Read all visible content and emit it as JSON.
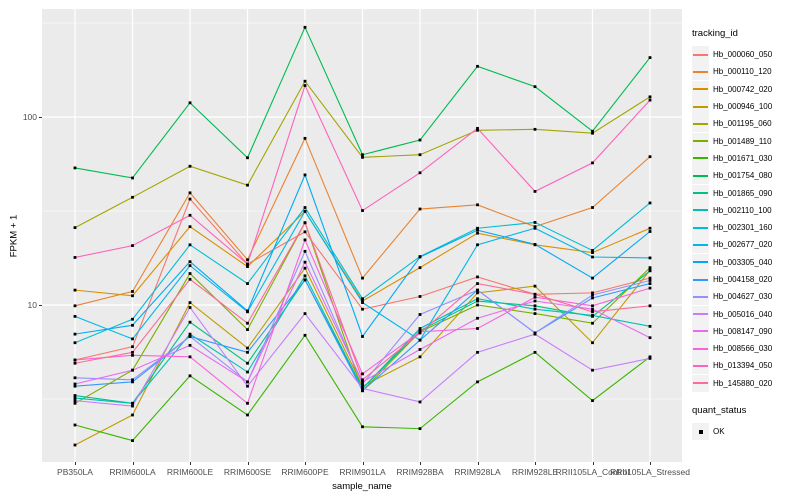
{
  "axes": {
    "x_title": "sample_name",
    "y_title": "FPKM + 1",
    "y_tick_labels": [
      "100",
      "10"
    ]
  },
  "legend": {
    "tracking_title": "tracking_id",
    "quant_title": "quant_status",
    "quant_ok_label": "OK"
  },
  "style": {
    "panel_bg": "#EBEBEB",
    "grid_color": "#FFFFFF",
    "tick_text_color": "#4D4D4D",
    "marker_color": "#000000"
  },
  "chart_data": {
    "type": "line",
    "title": "",
    "xlabel": "sample_name",
    "ylabel": "FPKM + 1",
    "y_scale": "log10",
    "ylim": [
      1.46,
      375
    ],
    "y_major_ticks": [
      10,
      100
    ],
    "y_minor_ticks": [
      3.162,
      31.62,
      316.2
    ],
    "grid": true,
    "legend_position": "right",
    "marker": {
      "shape": "square",
      "color": "#000000",
      "status_label": "OK"
    },
    "categories": [
      "PB350LA",
      "RRIM600LA",
      "RRIM600LE",
      "RRIM600SE",
      "RRIM600PE",
      "RRIM901LA",
      "RRIM928BA",
      "RRIM928LA",
      "RRIM928LE",
      "RRII105LA_Control",
      "RRII105LA_Stressed"
    ],
    "series": [
      {
        "name": "Hb_000060_050",
        "color": "#F8766D",
        "values": [
          5.1,
          6.0,
          36.6,
          16.5,
          24.5,
          9.5,
          11.1,
          14.1,
          11.4,
          11.6,
          13.9
        ]
      },
      {
        "name": "Hb_000110_120",
        "color": "#EA8331",
        "values": [
          9.9,
          11.8,
          39.5,
          17.4,
          77,
          13.9,
          32.4,
          34.1,
          26.1,
          33,
          61.5
        ]
      },
      {
        "name": "Hb_000742_020",
        "color": "#D89000",
        "values": [
          12.0,
          11.2,
          26.1,
          16.0,
          31.5,
          10.5,
          15.8,
          24.1,
          20.9,
          19.0,
          25.6
        ]
      },
      {
        "name": "Hb_000946_100",
        "color": "#C09B00",
        "values": [
          1.8,
          2.6,
          10.3,
          5.9,
          15.7,
          3.7,
          5.3,
          11.6,
          12.6,
          6.3,
          15.3
        ]
      },
      {
        "name": "Hb_001195_060",
        "color": "#A3A500",
        "values": [
          25.8,
          37.4,
          54.7,
          43.4,
          155,
          61,
          63,
          85,
          86,
          82,
          128
        ]
      },
      {
        "name": "Hb_001489_110",
        "color": "#7CAE00",
        "values": [
          3.0,
          4.5,
          14.7,
          7.4,
          27.4,
          3.5,
          7.2,
          10.0,
          9.0,
          8.0,
          15.8
        ]
      },
      {
        "name": "Hb_001671_030",
        "color": "#39B600",
        "values": [
          2.3,
          1.9,
          4.2,
          2.6,
          6.9,
          2.25,
          2.2,
          3.9,
          5.6,
          3.1,
          5.3
        ]
      },
      {
        "name": "Hb_001754_080",
        "color": "#00BB4E",
        "values": [
          53.6,
          47.4,
          119,
          60.7,
          300,
          63,
          75.4,
          186,
          145,
          84,
          207
        ]
      },
      {
        "name": "Hb_001865_090",
        "color": "#00C087",
        "values": [
          3.3,
          3.0,
          8.1,
          4.9,
          13.6,
          3.6,
          7.3,
          10.5,
          9.9,
          8.7,
          15.2
        ]
      },
      {
        "name": "Hb_002110_100",
        "color": "#00C0B2",
        "values": [
          3.2,
          3.0,
          7.0,
          4.4,
          14.3,
          3.6,
          7.5,
          10.8,
          9.5,
          8.8,
          7.7
        ]
      },
      {
        "name": "Hb_002301_160",
        "color": "#00BFD3",
        "values": [
          6.3,
          8.4,
          20.9,
          13.0,
          33,
          10.8,
          18.1,
          25.6,
          27.5,
          19.5,
          34.9
        ]
      },
      {
        "name": "Hb_002677_020",
        "color": "#00B7E8",
        "values": [
          8.7,
          6.6,
          16.2,
          9.2,
          31.5,
          10.3,
          6.5,
          20.9,
          25.6,
          18.0,
          17.8
        ]
      },
      {
        "name": "Hb_003305_040",
        "color": "#00A9F4",
        "values": [
          7.0,
          7.8,
          17.0,
          9.3,
          49.2,
          6.8,
          18.0,
          25.0,
          21.0,
          13.9,
          24.6
        ]
      },
      {
        "name": "Hb_004158_020",
        "color": "#3598FC",
        "values": [
          3.7,
          3.9,
          6.8,
          5.6,
          13.6,
          3.5,
          6.5,
          12.0,
          7.1,
          10.9,
          13.0
        ]
      },
      {
        "name": "Hb_004627_030",
        "color": "#9590FF",
        "values": [
          4.1,
          4.0,
          6.8,
          3.9,
          19.3,
          3.8,
          8.9,
          12.0,
          7.1,
          11.3,
          13.5
        ]
      },
      {
        "name": "Hb_005016_040",
        "color": "#C77CFF",
        "values": [
          3.1,
          2.9,
          9.7,
          3.7,
          9.0,
          3.6,
          3.05,
          5.6,
          7.0,
          4.5,
          5.2
        ]
      },
      {
        "name": "Hb_008147_090",
        "color": "#E76BF3",
        "values": [
          3.8,
          4.5,
          6.1,
          3.9,
          16.9,
          3.9,
          5.8,
          8.5,
          10.5,
          9.5,
          6.7
        ]
      },
      {
        "name": "Hb_008566_030",
        "color": "#FA62DB",
        "values": [
          5.1,
          5.4,
          5.3,
          3.0,
          22.2,
          4.3,
          7.2,
          7.5,
          11.0,
          9.9,
          12.3
        ]
      },
      {
        "name": "Hb_013394_050",
        "color": "#FF62BC",
        "values": [
          17.9,
          20.7,
          30.0,
          16.5,
          147,
          31.8,
          50.5,
          87,
          40.2,
          57,
          123
        ]
      },
      {
        "name": "Hb_145880_020",
        "color": "#FF6A98",
        "values": [
          4.9,
          5.6,
          13.7,
          8.0,
          27.4,
          4.0,
          7.1,
          13.0,
          11.4,
          9.2,
          9.9
        ]
      }
    ]
  }
}
